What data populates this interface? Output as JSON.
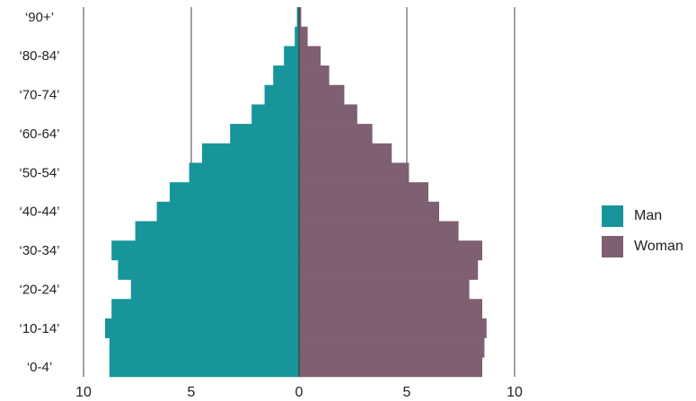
{
  "chart_data": {
    "type": "bar",
    "orientation": "horizontal",
    "layout": "population-pyramid",
    "categories": [
      "'0-4'",
      "'5-9'",
      "'10-14'",
      "'15-19'",
      "'20-24'",
      "'25-29'",
      "'30-34'",
      "'35-39'",
      "'40-44'",
      "'45-49'",
      "'50-54'",
      "'55-59'",
      "'60-64'",
      "'65-69'",
      "'70-74'",
      "'75-79'",
      "'80-84'",
      "'85-89'",
      "'90+'"
    ],
    "category_labels_shown": [
      "‘0-4’",
      "‘10-14’",
      "‘20-24’",
      "‘30-34’",
      "‘40-44’",
      "‘50-54’",
      "‘60-64’",
      "‘70-74’",
      "‘80-84’",
      "‘90+’"
    ],
    "series": [
      {
        "name": "Man",
        "color": "#17959a",
        "values": [
          8.8,
          8.8,
          9.0,
          8.7,
          7.8,
          8.4,
          8.7,
          7.6,
          6.6,
          6.0,
          5.1,
          4.5,
          3.2,
          2.2,
          1.6,
          1.2,
          0.7,
          0.2,
          0.1
        ]
      },
      {
        "name": "Woman",
        "color": "#7f5f72",
        "values": [
          8.5,
          8.6,
          8.7,
          8.5,
          7.9,
          8.3,
          8.5,
          7.4,
          6.5,
          6.0,
          5.1,
          4.3,
          3.4,
          2.7,
          2.1,
          1.4,
          1.0,
          0.4,
          0.1
        ]
      }
    ],
    "x_ticks": [
      "10",
      "5",
      "0",
      "5",
      "10"
    ],
    "xlim": [
      -10,
      10
    ],
    "grid": true,
    "legend": "right"
  }
}
